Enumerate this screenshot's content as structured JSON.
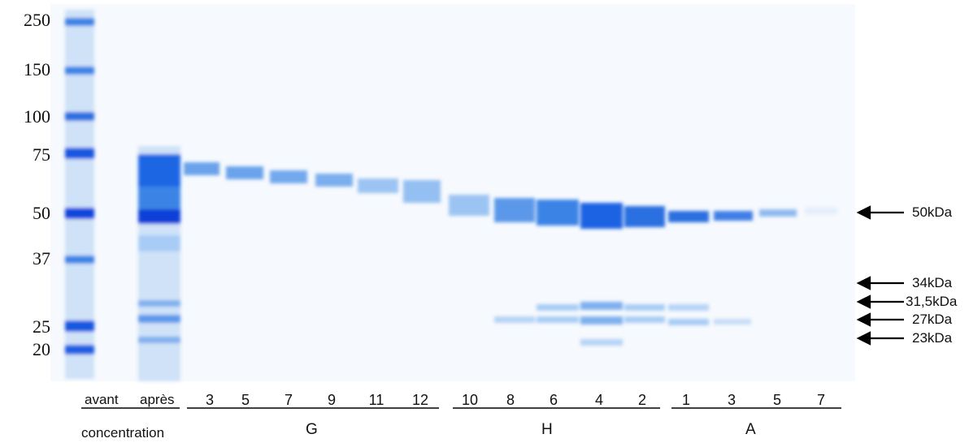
{
  "figure": {
    "markers": [
      "250",
      "150",
      "100",
      "75",
      "50",
      "37",
      "25",
      "20"
    ],
    "sample_labels": {
      "avant": "avant",
      "apres": "après"
    },
    "lane_numbers": [
      "3",
      "5",
      "7",
      "9",
      "11",
      "12",
      "10",
      "8",
      "6",
      "4",
      "2",
      "1",
      "3",
      "5",
      "7"
    ],
    "groups": {
      "g": "G",
      "h": "H",
      "a": "A"
    },
    "row_label": "concentration",
    "annotations": [
      "50kDa",
      "34kDa",
      "31,5kDa",
      "27kDa",
      "23kDa"
    ],
    "colors": {
      "band_dark": "#0a3fd8",
      "band_mid": "#3f7fe8",
      "band_light": "#a8ccf5",
      "gel_bg": "#f6f9fd"
    }
  }
}
